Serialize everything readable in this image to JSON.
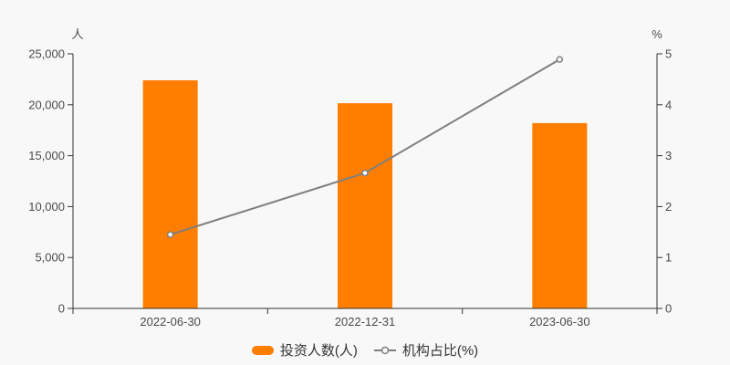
{
  "chart_data": {
    "type": "bar",
    "subtype": "bar+line dual axis",
    "categories": [
      "2022-06-30",
      "2022-12-31",
      "2023-06-30"
    ],
    "series": [
      {
        "name": "投资人数(人)",
        "type": "bar",
        "axis": "left",
        "color": "#ff7e00",
        "values": [
          22400,
          20150,
          18200
        ]
      },
      {
        "name": "机构占比(%)",
        "type": "line",
        "axis": "right",
        "color": "#7f7f7f",
        "marker": "hollow-circle",
        "values": [
          1.45,
          2.66,
          4.89
        ]
      }
    ],
    "left_axis": {
      "name": "人",
      "min": 0,
      "max": 25000,
      "tick_labels": [
        "0",
        "5,000",
        "10,000",
        "15,000",
        "20,000",
        "25,000"
      ]
    },
    "right_axis": {
      "name": "%",
      "min": 0,
      "max": 5,
      "tick_labels": [
        "0",
        "1",
        "2",
        "3",
        "4",
        "5"
      ]
    },
    "legend_position": "bottom-center",
    "grid": false,
    "colors": {
      "background": "#f8f8f8",
      "axis_line": "#333333",
      "tick_label": "#4a4a4a",
      "legend_text": "#333333"
    }
  }
}
